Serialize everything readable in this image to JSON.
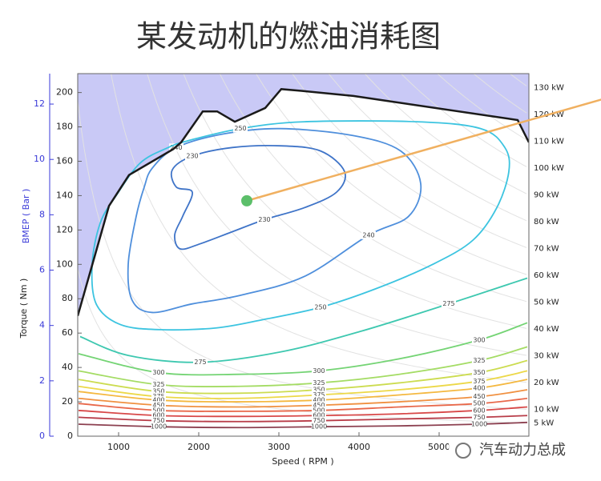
{
  "chart_data": {
    "type": "contour",
    "title": "某发动机的燃油消耗图",
    "x_label": "Speed ( RPM )",
    "y_label": "Torque ( Nm )",
    "y2_label": "BMEP ( Bar )",
    "xlim": [
      490,
      6120
    ],
    "xticks": [
      1000,
      2000,
      3000,
      4000,
      5000
    ],
    "ylim": [
      0,
      211
    ],
    "yticks": [
      0,
      20,
      40,
      60,
      80,
      100,
      120,
      140,
      160,
      180,
      200
    ],
    "y2lim": [
      0,
      13.1
    ],
    "y2ticks": [
      0,
      2,
      4,
      6,
      8,
      10,
      12
    ],
    "y2_color": "#3a3ad8",
    "full_load": {
      "color": "#1a1a1a",
      "fill": "#c9c9f6",
      "rpm": [
        490,
        880,
        1130,
        1680,
        1780,
        2050,
        2230,
        2450,
        2830,
        3030,
        3280,
        3930,
        5980,
        6120
      ],
      "torque": [
        70,
        134,
        152,
        167,
        171,
        189,
        189,
        183,
        191,
        202,
        201,
        198,
        184,
        171
      ]
    },
    "power_lines": [
      {
        "value": 5,
        "label": "5 kW"
      },
      {
        "value": 10,
        "label": "10 kW"
      },
      {
        "value": 20,
        "label": "20 kW"
      },
      {
        "value": 30,
        "label": "30 kW"
      },
      {
        "value": 40,
        "label": "40 kW"
      },
      {
        "value": 50,
        "label": "50 kW"
      },
      {
        "value": 60,
        "label": "60 kW"
      },
      {
        "value": 70,
        "label": "70 kW"
      },
      {
        "value": 80,
        "label": "80 kW"
      },
      {
        "value": 90,
        "label": "90 kW"
      },
      {
        "value": 100,
        "label": "100 kW"
      },
      {
        "value": 110,
        "label": "110 kW"
      },
      {
        "value": 120,
        "label": "120 kW"
      },
      {
        "value": 130,
        "label": "130 kW"
      }
    ],
    "contours": [
      {
        "level": 230,
        "color": "#3f74c8",
        "rpm": [
          1670,
          1920,
          2420,
          3020,
          3520,
          3820,
          3720,
          3320,
          2820,
          2420,
          2020,
          1770,
          1700,
          1800,
          1920,
          1720
        ],
        "torque": [
          155,
          163,
          168,
          169,
          166,
          154,
          142,
          133,
          126,
          119,
          112,
          109,
          117,
          128,
          142,
          145
        ]
      },
      {
        "level": 240,
        "color": "#4f8fdc",
        "rpm": [
          1420,
          1720,
          2320,
          3020,
          3920,
          4520,
          4770,
          4620,
          4120,
          3320,
          2520,
          1920,
          1420,
          1170,
          1120,
          1220,
          1320
        ],
        "torque": [
          156,
          168,
          176,
          179,
          175,
          166,
          147,
          128,
          117,
          93,
          82,
          77,
          72,
          79,
          100,
          128,
          145
        ]
      },
      {
        "level": 250,
        "color": "#3cc4e0",
        "rpm": [
          1870,
          2520,
          3320,
          4720,
          5520,
          5820,
          5870,
          5720,
          5420,
          4920,
          4220,
          3520,
          2820,
          2220,
          1520,
          1020,
          720,
          670,
          770,
          970,
          1270,
          1620
        ],
        "torque": [
          172,
          179,
          183,
          183,
          179,
          168,
          154,
          133,
          114,
          100,
          86,
          75,
          68,
          63,
          62,
          65,
          77,
          100,
          124,
          140,
          159,
          168
        ]
      },
      {
        "level": 275,
        "color": "#3ec8b0",
        "rpm": [
          520,
          1120,
          2020,
          3020,
          4020,
          5120,
          6100
        ],
        "torque": [
          58,
          47,
          43,
          49,
          61,
          77,
          92
        ]
      },
      {
        "level": 300,
        "color": "#74d474",
        "rpm": [
          500,
          1500,
          2500,
          3500,
          4500,
          5500,
          6100
        ],
        "torque": [
          48,
          37,
          36,
          38,
          45,
          56,
          66
        ]
      },
      {
        "level": 325,
        "color": "#a4dc64",
        "rpm": [
          500,
          1500,
          2500,
          3500,
          4500,
          5500,
          6100
        ],
        "torque": [
          38,
          30,
          29,
          31,
          36,
          44,
          52
        ]
      },
      {
        "level": 350,
        "color": "#ccdc50",
        "rpm": [
          500,
          1500,
          2500,
          3500,
          4500,
          5500,
          6100
        ],
        "torque": [
          33,
          26,
          25,
          27,
          31,
          37,
          44
        ]
      },
      {
        "level": 375,
        "color": "#ecd848",
        "rpm": [
          500,
          1500,
          2500,
          3500,
          4500,
          5500,
          6100
        ],
        "torque": [
          29,
          23,
          22,
          24,
          27,
          32,
          38
        ]
      },
      {
        "level": 400,
        "color": "#f4b840",
        "rpm": [
          500,
          1500,
          2500,
          3500,
          4500,
          5500,
          6100
        ],
        "torque": [
          26,
          21,
          20,
          21,
          24,
          28,
          33
        ]
      },
      {
        "level": 450,
        "color": "#f09040",
        "rpm": [
          500,
          1500,
          2500,
          3500,
          4500,
          5500,
          6100
        ],
        "torque": [
          22,
          18,
          17,
          18,
          20,
          23,
          27
        ]
      },
      {
        "level": 500,
        "color": "#e8684a",
        "rpm": [
          500,
          1500,
          2500,
          3500,
          4500,
          5500,
          6100
        ],
        "torque": [
          19,
          15,
          14.5,
          15,
          17,
          19,
          22
        ]
      },
      {
        "level": 600,
        "color": "#d84848",
        "rpm": [
          500,
          1500,
          2500,
          3500,
          4500,
          5500,
          6100
        ],
        "torque": [
          15,
          12,
          11.5,
          12,
          13,
          15,
          17
        ]
      },
      {
        "level": 750,
        "color": "#b83c48",
        "rpm": [
          500,
          1500,
          2500,
          3500,
          4500,
          5500,
          6100
        ],
        "torque": [
          11,
          9,
          8.5,
          9,
          10,
          11,
          12
        ]
      },
      {
        "level": 1000,
        "color": "#8c4050",
        "rpm": [
          500,
          1500,
          2500,
          3500,
          4500,
          5500,
          6100
        ],
        "torque": [
          7,
          5.5,
          5,
          5.5,
          6,
          7,
          8
        ]
      }
    ],
    "optimum": {
      "rpm": 2600,
      "torque": 137,
      "color": "#5cbf6a"
    },
    "pointer": {
      "rpm": [
        2600,
        7030
      ],
      "torque": [
        137,
        196
      ],
      "color": "#f0b060"
    },
    "watermark": "汽车动力总成"
  }
}
